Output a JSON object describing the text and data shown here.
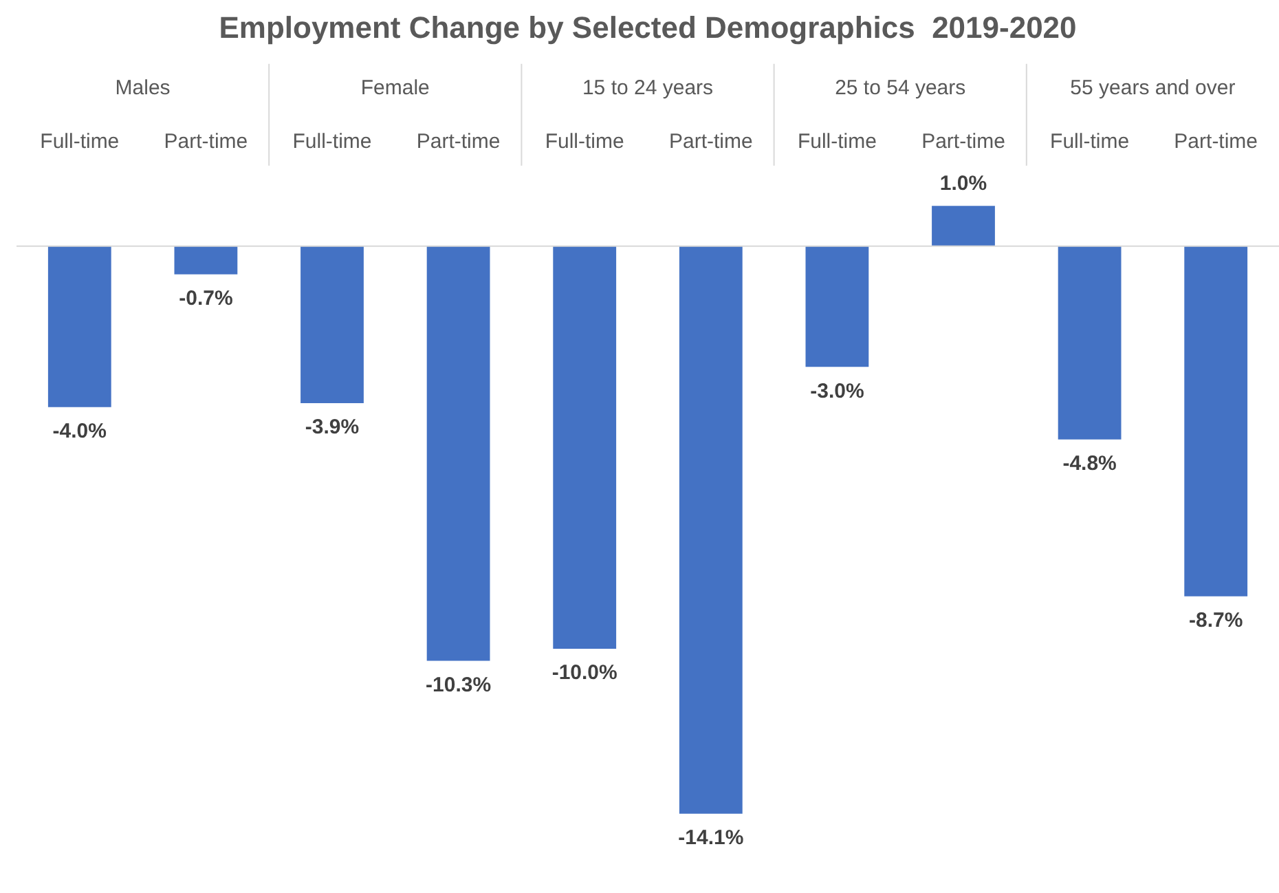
{
  "chart_data": {
    "type": "bar",
    "title": "Employment Change by Selected Demographics  2019-2020",
    "categories": [
      "Full-time",
      "Part-time",
      "Full-time",
      "Part-time",
      "Full-time",
      "Part-time",
      "Full-time",
      "Part-time",
      "Full-time",
      "Part-time"
    ],
    "annotations": [
      "Males",
      "Female",
      "15 to 24 years",
      "25 to 54 years",
      "55 years and over"
    ],
    "values": [
      -4.0,
      -0.7,
      -3.9,
      -10.3,
      -10.0,
      -14.1,
      -3.0,
      1.0,
      -4.8,
      -8.7
    ],
    "value_labels": [
      "-4.0%",
      "-0.7%",
      "-3.9%",
      "-10.3%",
      "-10.0%",
      "-14.1%",
      "-3.0%",
      "1.0%",
      "-4.8%",
      "-8.7%"
    ],
    "color": "#4472c4",
    "grid": false,
    "legend": false
  }
}
